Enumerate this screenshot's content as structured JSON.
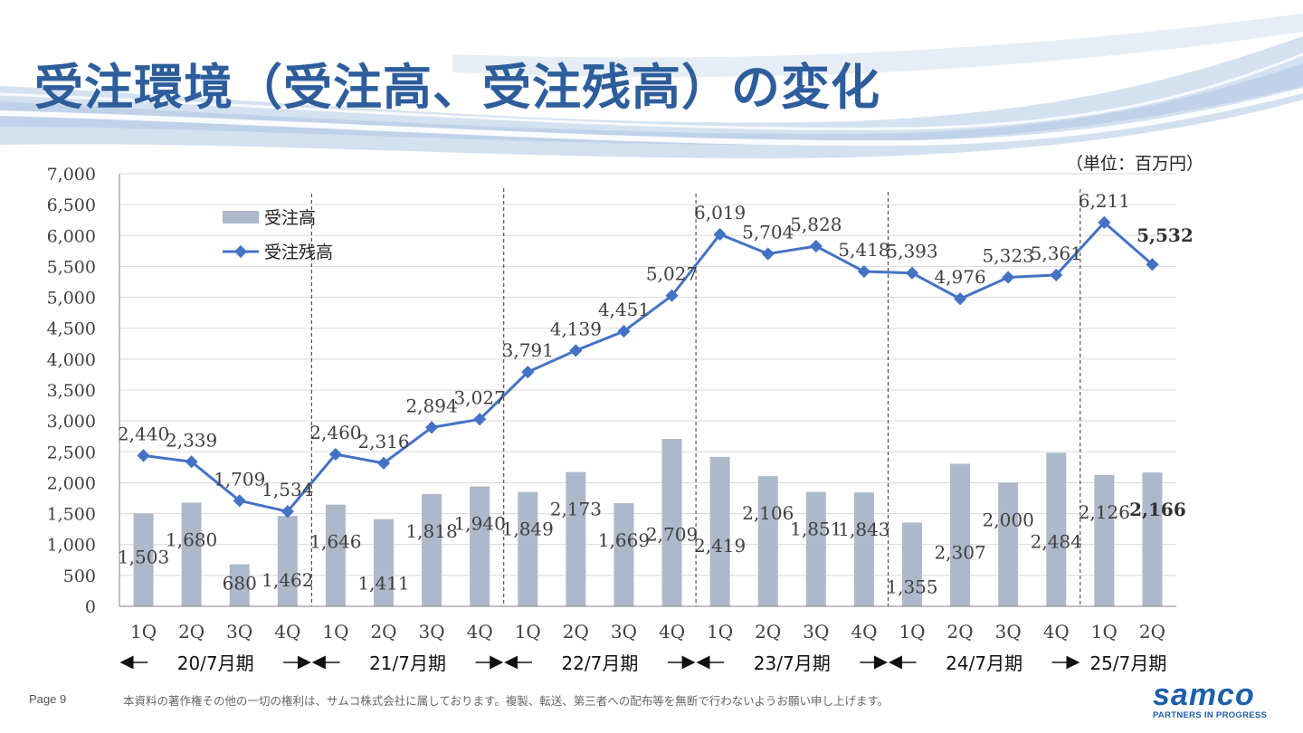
{
  "slide": {
    "title": "受注環境（受注高、受注残高）の変化",
    "unit": "（単位：百万円）",
    "page": "Page 9",
    "copyright": "本資料の著作権その他の一切の権利は、サムコ株式会社に属しております。複製、転送、第三者への配布等を無断で行わないようお願い申し上げます。",
    "logo": {
      "word": "samco",
      "tagline": "PARTNERS IN PROGRESS"
    }
  },
  "colors": {
    "title": "#2d5d9b",
    "bar": "#adb9ca",
    "line": "#4472c4",
    "text": "#404040"
  },
  "chart_data": {
    "type": "bar+line",
    "categories": [
      "1Q",
      "2Q",
      "3Q",
      "4Q",
      "1Q",
      "2Q",
      "3Q",
      "4Q",
      "1Q",
      "2Q",
      "3Q",
      "4Q",
      "1Q",
      "2Q",
      "3Q",
      "4Q",
      "1Q",
      "2Q",
      "3Q",
      "4Q",
      "1Q",
      "2Q"
    ],
    "periods": [
      {
        "label": "20/7月期",
        "quarters": 4
      },
      {
        "label": "21/7月期",
        "quarters": 4
      },
      {
        "label": "22/7月期",
        "quarters": 4
      },
      {
        "label": "23/7月期",
        "quarters": 4
      },
      {
        "label": "24/7月期",
        "quarters": 4
      },
      {
        "label": "25/7月期",
        "quarters": 2
      }
    ],
    "series": [
      {
        "name": "受注高",
        "type": "bar",
        "values": [
          1503,
          1680,
          680,
          1462,
          1646,
          1411,
          1818,
          1940,
          1849,
          2173,
          1669,
          2709,
          2419,
          2106,
          1851,
          1843,
          1355,
          2307,
          2000,
          2484,
          2126,
          2166
        ],
        "labels": [
          "1,503",
          "1,680",
          "680",
          "1,462",
          "1,646",
          "1,411",
          "1,818",
          "1,940",
          "1,849",
          "2,173",
          "1,669",
          "2,709",
          "2,419",
          "2,106",
          "1,851",
          "1,843",
          "1,355",
          "2,307",
          "2,000",
          "2,484",
          "2,126",
          "2,166"
        ]
      },
      {
        "name": "受注残高",
        "type": "line",
        "values": [
          2440,
          2339,
          1709,
          1534,
          2460,
          2316,
          2894,
          3027,
          3791,
          4139,
          4451,
          5027,
          6019,
          5704,
          5828,
          5418,
          5393,
          4976,
          5323,
          5361,
          6211,
          5532
        ],
        "labels": [
          "2,440",
          "2,339",
          "1,709",
          "1,534",
          "2,460",
          "2,316",
          "2,894",
          "3,027",
          "3,791",
          "4,139",
          "4,451",
          "5,027",
          "6,019",
          "5,704",
          "5,828",
          "5,418",
          "5,393",
          "4,976",
          "5,323",
          "5,361",
          "6,211",
          "5,532"
        ]
      }
    ],
    "y_ticks": [
      "0",
      "500",
      "1,000",
      "1,500",
      "2,000",
      "2,500",
      "3,000",
      "3,500",
      "4,000",
      "4,500",
      "5,000",
      "5,500",
      "6,000",
      "6,500",
      "7,000"
    ],
    "ylim": [
      0,
      7000
    ],
    "legend_position": "top-left",
    "grid": true
  }
}
